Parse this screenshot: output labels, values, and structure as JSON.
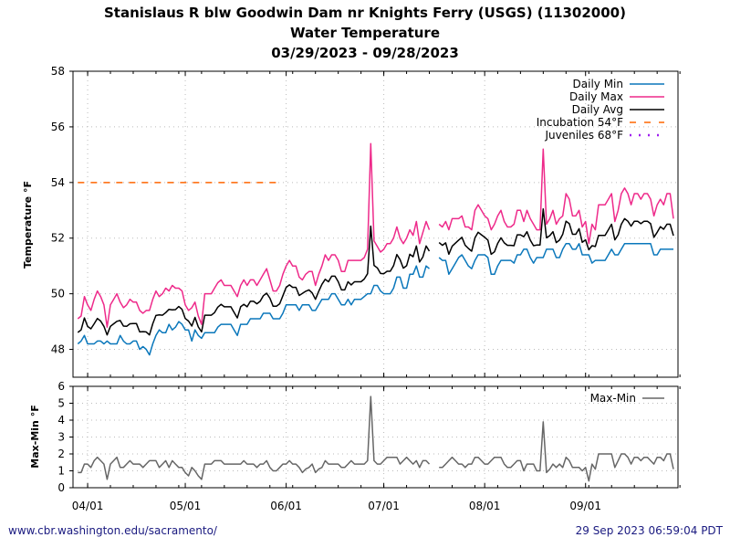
{
  "chart_data": {
    "type": "line",
    "title": "Stanislaus R blw Goodwin Dam nr Knights Ferry (USGS) (11302000)",
    "subtitle": "Water Temperature",
    "date_range": "03/29/2023 - 09/28/2023",
    "start_date": "2023-03-29",
    "x_tick_labels": [
      "04/01",
      "05/01",
      "06/01",
      "07/01",
      "08/01",
      "09/01"
    ],
    "x_tick_days": [
      3,
      33,
      64,
      94,
      125,
      156
    ],
    "x_range_days": [
      -1.5,
      184.4
    ],
    "top_panel": {
      "ylabel": "Temperature °F",
      "ylim": [
        47,
        58
      ],
      "y_ticks": [
        48,
        50,
        52,
        54,
        56,
        58
      ],
      "grid": true,
      "legend_placement": "top-right",
      "legend": [
        "Daily Min",
        "Daily Max",
        "Daily Avg",
        "Incubation 54°F",
        "Juveniles 68°F"
      ],
      "thresholds": [
        {
          "name": "Incubation 54°F",
          "value": 54,
          "start_day": 0,
          "end_day": 61,
          "color": "#ff6600",
          "style": "dashed"
        },
        {
          "name": "Juveniles 68°F",
          "value": 68,
          "color": "#a020f0",
          "style": "dotted"
        }
      ],
      "colors": {
        "min": "#0a77bb",
        "max": "#ee2a8a",
        "avg": "#000000"
      }
    },
    "bottom_panel": {
      "ylabel": "Max-Min °F",
      "ylim": [
        0,
        6
      ],
      "y_ticks": [
        0,
        1,
        2,
        3,
        4,
        5,
        6
      ],
      "legend": [
        "Max-Min"
      ],
      "legend_placement": "top-right",
      "color": "#666666"
    },
    "series": [
      {
        "name": "Daily Min",
        "values": [
          48.2,
          48.3,
          48.5,
          48.2,
          48.2,
          48.2,
          48.3,
          48.3,
          48.2,
          48.3,
          48.2,
          48.2,
          48.2,
          48.5,
          48.3,
          48.2,
          48.2,
          48.3,
          48.3,
          48.0,
          48.1,
          48.0,
          47.8,
          48.2,
          48.5,
          48.7,
          48.6,
          48.6,
          48.9,
          48.7,
          48.8,
          49.0,
          48.9,
          48.7,
          48.7,
          48.3,
          48.7,
          48.5,
          48.4,
          48.6,
          48.6,
          48.6,
          48.6,
          48.8,
          48.9,
          48.9,
          48.9,
          48.9,
          48.7,
          48.5,
          48.9,
          48.9,
          48.9,
          49.1,
          49.1,
          49.1,
          49.1,
          49.3,
          49.3,
          49.3,
          49.1,
          49.1,
          49.1,
          49.3,
          49.6,
          49.6,
          49.6,
          49.6,
          49.4,
          49.6,
          49.6,
          49.6,
          49.4,
          49.4,
          49.6,
          49.8,
          49.8,
          49.8,
          50.0,
          50.0,
          49.8,
          49.6,
          49.6,
          49.8,
          49.6,
          49.8,
          49.8,
          49.8,
          49.9,
          50.0,
          50.0,
          50.3,
          50.3,
          50.1,
          50.0,
          50.0,
          50.0,
          50.2,
          50.6,
          50.6,
          50.2,
          50.2,
          50.7,
          50.7,
          51.0,
          50.6,
          50.6,
          51.0,
          50.9,
          null,
          null,
          51.3,
          51.2,
          51.2,
          50.7,
          50.9,
          51.1,
          51.3,
          51.4,
          51.2,
          51.0,
          50.9,
          51.2,
          51.4,
          51.4,
          51.4,
          51.3,
          50.7,
          50.7,
          51.0,
          51.2,
          51.2,
          51.2,
          51.2,
          51.1,
          51.4,
          51.4,
          51.6,
          51.6,
          51.3,
          51.1,
          51.3,
          51.3,
          51.3,
          51.6,
          51.6,
          51.6,
          51.3,
          51.3,
          51.6,
          51.8,
          51.8,
          51.6,
          51.6,
          51.8,
          51.4,
          51.4,
          51.4,
          51.1,
          51.2,
          51.2,
          51.2,
          51.2,
          51.4,
          51.6,
          51.4,
          51.4,
          51.6,
          51.8,
          51.8,
          51.8,
          51.8,
          51.8,
          51.8,
          51.8,
          51.8,
          51.8,
          51.4,
          51.4,
          51.6,
          51.6,
          51.6,
          51.6,
          51.6
        ]
      },
      {
        "name": "Max-Min",
        "values": [
          0.9,
          0.9,
          1.4,
          1.4,
          1.2,
          1.6,
          1.8,
          1.6,
          1.4,
          0.5,
          1.4,
          1.6,
          1.8,
          1.2,
          1.2,
          1.4,
          1.6,
          1.4,
          1.4,
          1.4,
          1.2,
          1.4,
          1.6,
          1.6,
          1.6,
          1.2,
          1.4,
          1.6,
          1.2,
          1.6,
          1.4,
          1.2,
          1.2,
          0.9,
          0.7,
          1.2,
          1.0,
          0.7,
          0.5,
          1.4,
          1.4,
          1.4,
          1.6,
          1.6,
          1.6,
          1.4,
          1.4,
          1.4,
          1.4,
          1.4,
          1.4,
          1.6,
          1.4,
          1.4,
          1.4,
          1.2,
          1.4,
          1.4,
          1.6,
          1.2,
          1.0,
          1.0,
          1.2,
          1.4,
          1.4,
          1.6,
          1.4,
          1.4,
          1.2,
          0.9,
          1.1,
          1.2,
          1.4,
          0.9,
          1.1,
          1.2,
          1.6,
          1.4,
          1.4,
          1.4,
          1.4,
          1.2,
          1.2,
          1.4,
          1.6,
          1.4,
          1.4,
          1.4,
          1.4,
          1.6,
          5.4,
          1.6,
          1.4,
          1.4,
          1.6,
          1.8,
          1.8,
          1.8,
          1.8,
          1.4,
          1.6,
          1.8,
          1.6,
          1.4,
          1.6,
          1.2,
          1.6,
          1.6,
          1.4,
          null,
          null,
          1.2,
          1.2,
          1.4,
          1.6,
          1.8,
          1.6,
          1.4,
          1.4,
          1.2,
          1.4,
          1.4,
          1.8,
          1.8,
          1.6,
          1.4,
          1.4,
          1.6,
          1.8,
          1.8,
          1.8,
          1.4,
          1.2,
          1.2,
          1.4,
          1.6,
          1.6,
          1.0,
          1.4,
          1.4,
          1.4,
          1.0,
          1.0,
          3.9,
          0.9,
          1.1,
          1.4,
          1.2,
          1.4,
          1.2,
          1.8,
          1.6,
          1.2,
          1.2,
          1.2,
          1.0,
          1.2,
          0.4,
          1.4,
          1.1,
          2.0,
          2.0,
          2.0,
          2.0,
          2.0,
          1.2,
          1.6,
          2.0,
          2.0,
          1.8,
          1.4,
          1.8,
          1.8,
          1.6,
          1.8,
          1.8,
          1.6,
          1.4,
          1.8,
          1.8,
          1.6,
          2.0,
          2.0,
          1.1
        ]
      },
      {
        "name": "Daily Max",
        "derived": "Daily Min + Max-Min"
      },
      {
        "name": "Daily Avg",
        "derived": "Daily Min + 0.45 × (Max-Min)"
      }
    ]
  },
  "footer": {
    "url": "www.cbr.washington.edu/sacramento/",
    "timestamp": "29 Sep 2023 06:59:04 PDT"
  }
}
